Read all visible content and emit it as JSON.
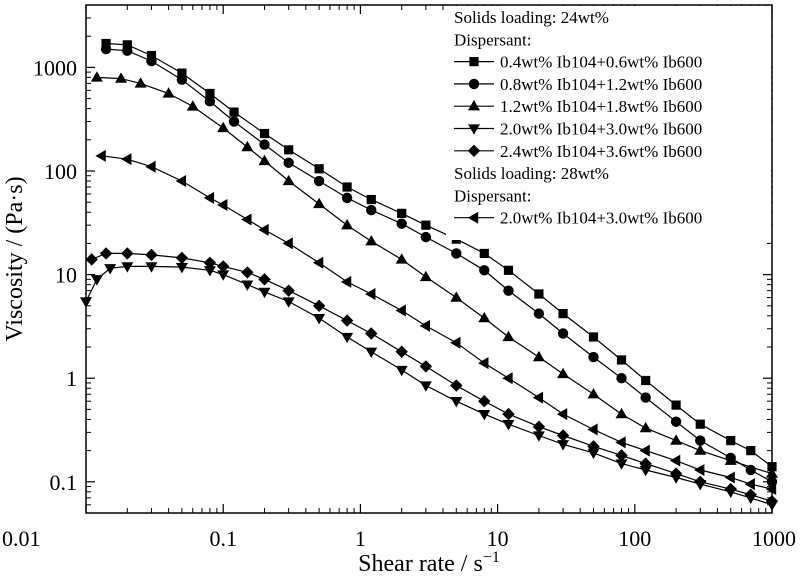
{
  "chart_data": {
    "type": "line",
    "xlabel": "Shear rate / s",
    "xlabel_sup": "−1",
    "ylabel": "Viscosity / (Pa·s)",
    "xscale": "log",
    "yscale": "log",
    "xlim": [
      0.01,
      1000
    ],
    "ylim": [
      0.05,
      4000
    ],
    "grid": false,
    "legend_position": "top-right",
    "x_ticks": [
      {
        "value": 0.01,
        "label": "0.01"
      },
      {
        "value": 0.1,
        "label": "0.1"
      },
      {
        "value": 1,
        "label": "1"
      },
      {
        "value": 10,
        "label": "10"
      },
      {
        "value": 100,
        "label": "100"
      },
      {
        "value": 1000,
        "label": "1000"
      }
    ],
    "y_ticks": [
      {
        "value": 0.1,
        "label": "0.1"
      },
      {
        "value": 1,
        "label": "1"
      },
      {
        "value": 10,
        "label": "10"
      },
      {
        "value": 100,
        "label": "100"
      },
      {
        "value": 1000,
        "label": "1000"
      }
    ],
    "legend_headers": [
      {
        "text": "Solids loading: 24wt%",
        "before_series": 0
      },
      {
        "text": "Dispersant:",
        "before_series": 0
      },
      {
        "text": "Solids loading: 28wt%",
        "before_series": 5
      },
      {
        "text": "Dispersant:",
        "before_series": 5
      }
    ],
    "series": [
      {
        "name": "0.4wt% Ib104+0.6wt% Ib600",
        "marker": "square",
        "points": [
          [
            0.014,
            1700
          ],
          [
            0.02,
            1650
          ],
          [
            0.03,
            1300
          ],
          [
            0.05,
            880
          ],
          [
            0.08,
            560
          ],
          [
            0.12,
            370
          ],
          [
            0.2,
            230
          ],
          [
            0.3,
            160
          ],
          [
            0.5,
            105
          ],
          [
            0.8,
            70
          ],
          [
            1.2,
            53
          ],
          [
            2,
            39
          ],
          [
            3,
            30
          ],
          [
            5,
            22
          ],
          [
            8,
            16
          ],
          [
            12,
            11
          ],
          [
            20,
            6.5
          ],
          [
            30,
            4.2
          ],
          [
            50,
            2.5
          ],
          [
            80,
            1.5
          ],
          [
            120,
            0.95
          ],
          [
            200,
            0.55
          ],
          [
            300,
            0.36
          ],
          [
            500,
            0.25
          ],
          [
            700,
            0.2
          ],
          [
            1000,
            0.14
          ]
        ]
      },
      {
        "name": "0.8wt% Ib104+1.2wt% Ib600",
        "marker": "circle",
        "points": [
          [
            0.014,
            1500
          ],
          [
            0.02,
            1450
          ],
          [
            0.03,
            1150
          ],
          [
            0.05,
            760
          ],
          [
            0.08,
            470
          ],
          [
            0.12,
            300
          ],
          [
            0.2,
            180
          ],
          [
            0.3,
            120
          ],
          [
            0.5,
            80
          ],
          [
            0.8,
            55
          ],
          [
            1.2,
            42
          ],
          [
            2,
            31
          ],
          [
            3,
            23
          ],
          [
            5,
            16
          ],
          [
            8,
            11
          ],
          [
            12,
            7
          ],
          [
            20,
            4.2
          ],
          [
            30,
            2.7
          ],
          [
            50,
            1.6
          ],
          [
            80,
            1.0
          ],
          [
            120,
            0.65
          ],
          [
            200,
            0.38
          ],
          [
            300,
            0.25
          ],
          [
            500,
            0.17
          ],
          [
            700,
            0.13
          ],
          [
            1000,
            0.1
          ]
        ]
      },
      {
        "name": "1.2wt% Ib104+1.8wt% Ib600",
        "marker": "triangle-up",
        "points": [
          [
            0.012,
            800
          ],
          [
            0.018,
            780
          ],
          [
            0.025,
            700
          ],
          [
            0.04,
            560
          ],
          [
            0.06,
            420
          ],
          [
            0.1,
            260
          ],
          [
            0.15,
            170
          ],
          [
            0.2,
            125
          ],
          [
            0.3,
            80
          ],
          [
            0.5,
            48
          ],
          [
            0.8,
            30
          ],
          [
            1.2,
            21
          ],
          [
            2,
            14
          ],
          [
            3,
            9.5
          ],
          [
            5,
            6
          ],
          [
            8,
            3.8
          ],
          [
            12,
            2.5
          ],
          [
            20,
            1.6
          ],
          [
            30,
            1.1
          ],
          [
            50,
            0.7
          ],
          [
            80,
            0.45
          ],
          [
            120,
            0.33
          ],
          [
            200,
            0.25
          ],
          [
            300,
            0.2
          ],
          [
            500,
            0.16
          ],
          [
            1000,
            0.12
          ]
        ]
      },
      {
        "name": "2.0wt% Ib104+3.0wt% Ib600",
        "marker": "triangle-down",
        "points": [
          [
            0.01,
            5.5
          ],
          [
            0.012,
            9
          ],
          [
            0.015,
            11.5
          ],
          [
            0.02,
            12
          ],
          [
            0.03,
            12
          ],
          [
            0.05,
            11.8
          ],
          [
            0.08,
            11
          ],
          [
            0.1,
            10
          ],
          [
            0.15,
            8
          ],
          [
            0.2,
            6.8
          ],
          [
            0.3,
            5.5
          ],
          [
            0.5,
            3.8
          ],
          [
            0.8,
            2.5
          ],
          [
            1.2,
            1.8
          ],
          [
            2,
            1.2
          ],
          [
            3,
            0.85
          ],
          [
            5,
            0.6
          ],
          [
            8,
            0.45
          ],
          [
            12,
            0.36
          ],
          [
            20,
            0.28
          ],
          [
            30,
            0.23
          ],
          [
            50,
            0.19
          ],
          [
            80,
            0.15
          ],
          [
            120,
            0.13
          ],
          [
            200,
            0.11
          ],
          [
            300,
            0.095
          ],
          [
            500,
            0.08
          ],
          [
            700,
            0.07
          ],
          [
            1000,
            0.06
          ]
        ]
      },
      {
        "name": "2.4wt% Ib104+3.6wt% Ib600",
        "marker": "diamond",
        "points": [
          [
            0.011,
            14
          ],
          [
            0.014,
            16
          ],
          [
            0.02,
            16
          ],
          [
            0.03,
            15.5
          ],
          [
            0.05,
            14.5
          ],
          [
            0.08,
            13
          ],
          [
            0.1,
            12
          ],
          [
            0.15,
            10.5
          ],
          [
            0.2,
            9
          ],
          [
            0.3,
            7
          ],
          [
            0.5,
            5
          ],
          [
            0.8,
            3.6
          ],
          [
            1.2,
            2.7
          ],
          [
            2,
            1.8
          ],
          [
            3,
            1.3
          ],
          [
            5,
            0.85
          ],
          [
            8,
            0.6
          ],
          [
            12,
            0.45
          ],
          [
            20,
            0.34
          ],
          [
            30,
            0.28
          ],
          [
            50,
            0.22
          ],
          [
            80,
            0.18
          ],
          [
            120,
            0.15
          ],
          [
            200,
            0.12
          ],
          [
            300,
            0.1
          ],
          [
            500,
            0.085
          ],
          [
            700,
            0.075
          ],
          [
            1000,
            0.065
          ]
        ]
      },
      {
        "name": "2.0wt% Ib104+3.0wt% Ib600",
        "marker": "triangle-left",
        "points": [
          [
            0.013,
            140
          ],
          [
            0.02,
            130
          ],
          [
            0.03,
            110
          ],
          [
            0.05,
            80
          ],
          [
            0.08,
            55
          ],
          [
            0.1,
            47
          ],
          [
            0.15,
            34
          ],
          [
            0.2,
            27
          ],
          [
            0.3,
            20
          ],
          [
            0.5,
            13
          ],
          [
            0.8,
            8.5
          ],
          [
            1.2,
            6.5
          ],
          [
            2,
            4.5
          ],
          [
            3,
            3.2
          ],
          [
            5,
            2.2
          ],
          [
            8,
            1.4
          ],
          [
            12,
            1.0
          ],
          [
            20,
            0.65
          ],
          [
            30,
            0.45
          ],
          [
            50,
            0.32
          ],
          [
            80,
            0.24
          ],
          [
            120,
            0.2
          ],
          [
            200,
            0.16
          ],
          [
            300,
            0.13
          ],
          [
            500,
            0.11
          ],
          [
            700,
            0.095
          ],
          [
            1000,
            0.085
          ]
        ]
      }
    ]
  }
}
